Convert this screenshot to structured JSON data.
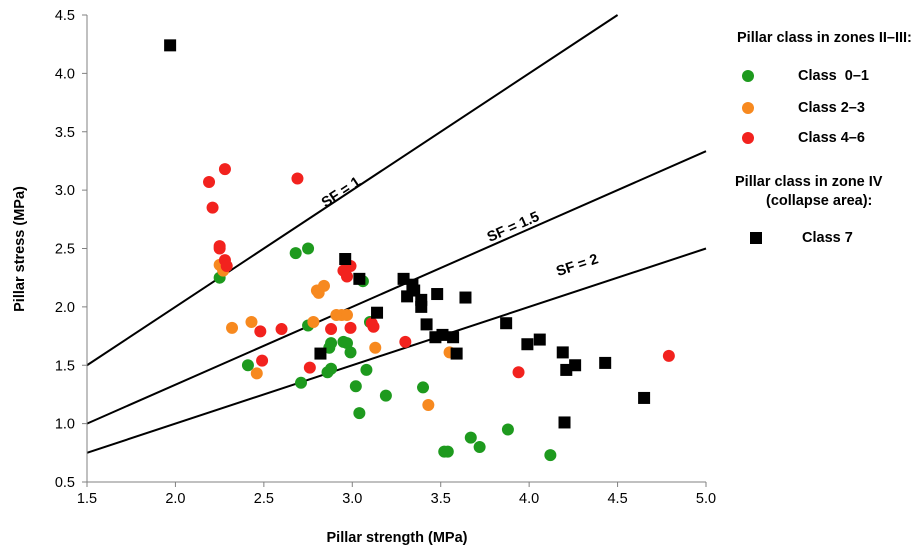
{
  "chart_data": {
    "type": "scatter",
    "xlabel": "Pillar strength (MPa)",
    "ylabel": "Pillar stress (MPa)",
    "xlim": [
      1.5,
      5.0
    ],
    "ylim": [
      0.5,
      4.5
    ],
    "xticks": [
      "1.5",
      "2.0",
      "2.5",
      "3.0",
      "3.5",
      "4.0",
      "4.5",
      "5.0"
    ],
    "yticks": [
      "0.5",
      "1.0",
      "1.5",
      "2.0",
      "2.5",
      "3.0",
      "3.5",
      "4.0",
      "4.5"
    ],
    "grid": false,
    "lines": [
      {
        "label": "SF = 1",
        "slope": 1.0,
        "label_at": [
          2.95,
          2.95
        ]
      },
      {
        "label": "SF = 1.5",
        "slope": 0.6667,
        "label_at": [
          3.92,
          2.65
        ]
      },
      {
        "label": "SF = 2",
        "slope": 0.5,
        "label_at": [
          4.28,
          2.32
        ]
      }
    ],
    "series": [
      {
        "name": "Class  0–1",
        "color": "#1e9a1e",
        "marker": "circle",
        "points": [
          [
            2.25,
            2.25
          ],
          [
            2.68,
            2.46
          ],
          [
            2.75,
            2.5
          ],
          [
            2.75,
            1.84
          ],
          [
            2.41,
            1.5
          ],
          [
            2.71,
            1.35
          ],
          [
            2.86,
            1.44
          ],
          [
            2.87,
            1.65
          ],
          [
            2.88,
            1.69
          ],
          [
            2.88,
            1.47
          ],
          [
            2.95,
            1.7
          ],
          [
            2.97,
            1.69
          ],
          [
            2.99,
            1.61
          ],
          [
            3.02,
            1.32
          ],
          [
            3.04,
            1.09
          ],
          [
            3.06,
            2.22
          ],
          [
            3.08,
            1.46
          ],
          [
            3.1,
            1.87
          ],
          [
            3.19,
            1.24
          ],
          [
            3.4,
            1.31
          ],
          [
            3.52,
            0.76
          ],
          [
            3.54,
            0.76
          ],
          [
            3.67,
            0.88
          ],
          [
            3.72,
            0.8
          ],
          [
            3.88,
            0.95
          ],
          [
            4.12,
            0.73
          ]
        ]
      },
      {
        "name": "Class 2–3",
        "color": "#f7891f",
        "marker": "circle",
        "points": [
          [
            2.25,
            2.36
          ],
          [
            2.27,
            2.31
          ],
          [
            2.32,
            1.82
          ],
          [
            2.43,
            1.87
          ],
          [
            2.46,
            1.43
          ],
          [
            2.78,
            1.87
          ],
          [
            2.8,
            2.14
          ],
          [
            2.81,
            2.12
          ],
          [
            2.84,
            2.18
          ],
          [
            2.91,
            1.93
          ],
          [
            2.94,
            1.93
          ],
          [
            2.97,
            1.93
          ],
          [
            3.13,
            1.65
          ],
          [
            3.43,
            1.16
          ],
          [
            3.55,
            1.61
          ]
        ]
      },
      {
        "name": "Class 4–6",
        "color": "#f2221e",
        "marker": "circle",
        "points": [
          [
            2.19,
            3.07
          ],
          [
            2.21,
            2.85
          ],
          [
            2.28,
            3.18
          ],
          [
            2.69,
            3.1
          ],
          [
            2.25,
            2.5
          ],
          [
            2.25,
            2.52
          ],
          [
            2.28,
            2.4
          ],
          [
            2.29,
            2.35
          ],
          [
            2.48,
            1.79
          ],
          [
            2.49,
            1.54
          ],
          [
            2.6,
            1.81
          ],
          [
            2.76,
            1.48
          ],
          [
            2.88,
            1.81
          ],
          [
            2.95,
            2.31
          ],
          [
            2.97,
            2.26
          ],
          [
            2.99,
            2.35
          ],
          [
            2.99,
            1.82
          ],
          [
            3.11,
            1.86
          ],
          [
            3.12,
            1.83
          ],
          [
            3.3,
            1.7
          ],
          [
            3.94,
            1.44
          ],
          [
            4.79,
            1.58
          ]
        ]
      },
      {
        "name": "Class 7",
        "color": "#000000",
        "marker": "square",
        "points": [
          [
            1.97,
            4.24
          ],
          [
            2.82,
            1.6
          ],
          [
            2.96,
            2.41
          ],
          [
            3.04,
            2.24
          ],
          [
            3.14,
            1.95
          ],
          [
            3.29,
            2.24
          ],
          [
            3.31,
            2.09
          ],
          [
            3.34,
            2.19
          ],
          [
            3.35,
            2.14
          ],
          [
            3.39,
            2.06
          ],
          [
            3.39,
            2.0
          ],
          [
            3.42,
            1.85
          ],
          [
            3.47,
            1.74
          ],
          [
            3.48,
            2.11
          ],
          [
            3.51,
            1.76
          ],
          [
            3.57,
            1.74
          ],
          [
            3.59,
            1.6
          ],
          [
            3.64,
            2.08
          ],
          [
            3.87,
            1.86
          ],
          [
            3.99,
            1.68
          ],
          [
            4.06,
            1.72
          ],
          [
            4.19,
            1.61
          ],
          [
            4.2,
            1.01
          ],
          [
            4.21,
            1.46
          ],
          [
            4.26,
            1.5
          ],
          [
            4.43,
            1.52
          ],
          [
            4.65,
            1.22
          ]
        ]
      }
    ]
  },
  "legend": {
    "heading_zones_23": "Pillar class in zones II–III:",
    "heading_zone4_line1": "Pillar class in zone IV",
    "heading_zone4_line2": "(collapse area):",
    "items": [
      {
        "label": "Class  0–1",
        "color": "#1e9a1e",
        "marker": "circle"
      },
      {
        "label": "Class 2–3",
        "color": "#f7891f",
        "marker": "circle"
      },
      {
        "label": "Class 4–6",
        "color": "#f2221e",
        "marker": "circle"
      },
      {
        "label": "Class 7",
        "color": "#000000",
        "marker": "square"
      }
    ]
  }
}
